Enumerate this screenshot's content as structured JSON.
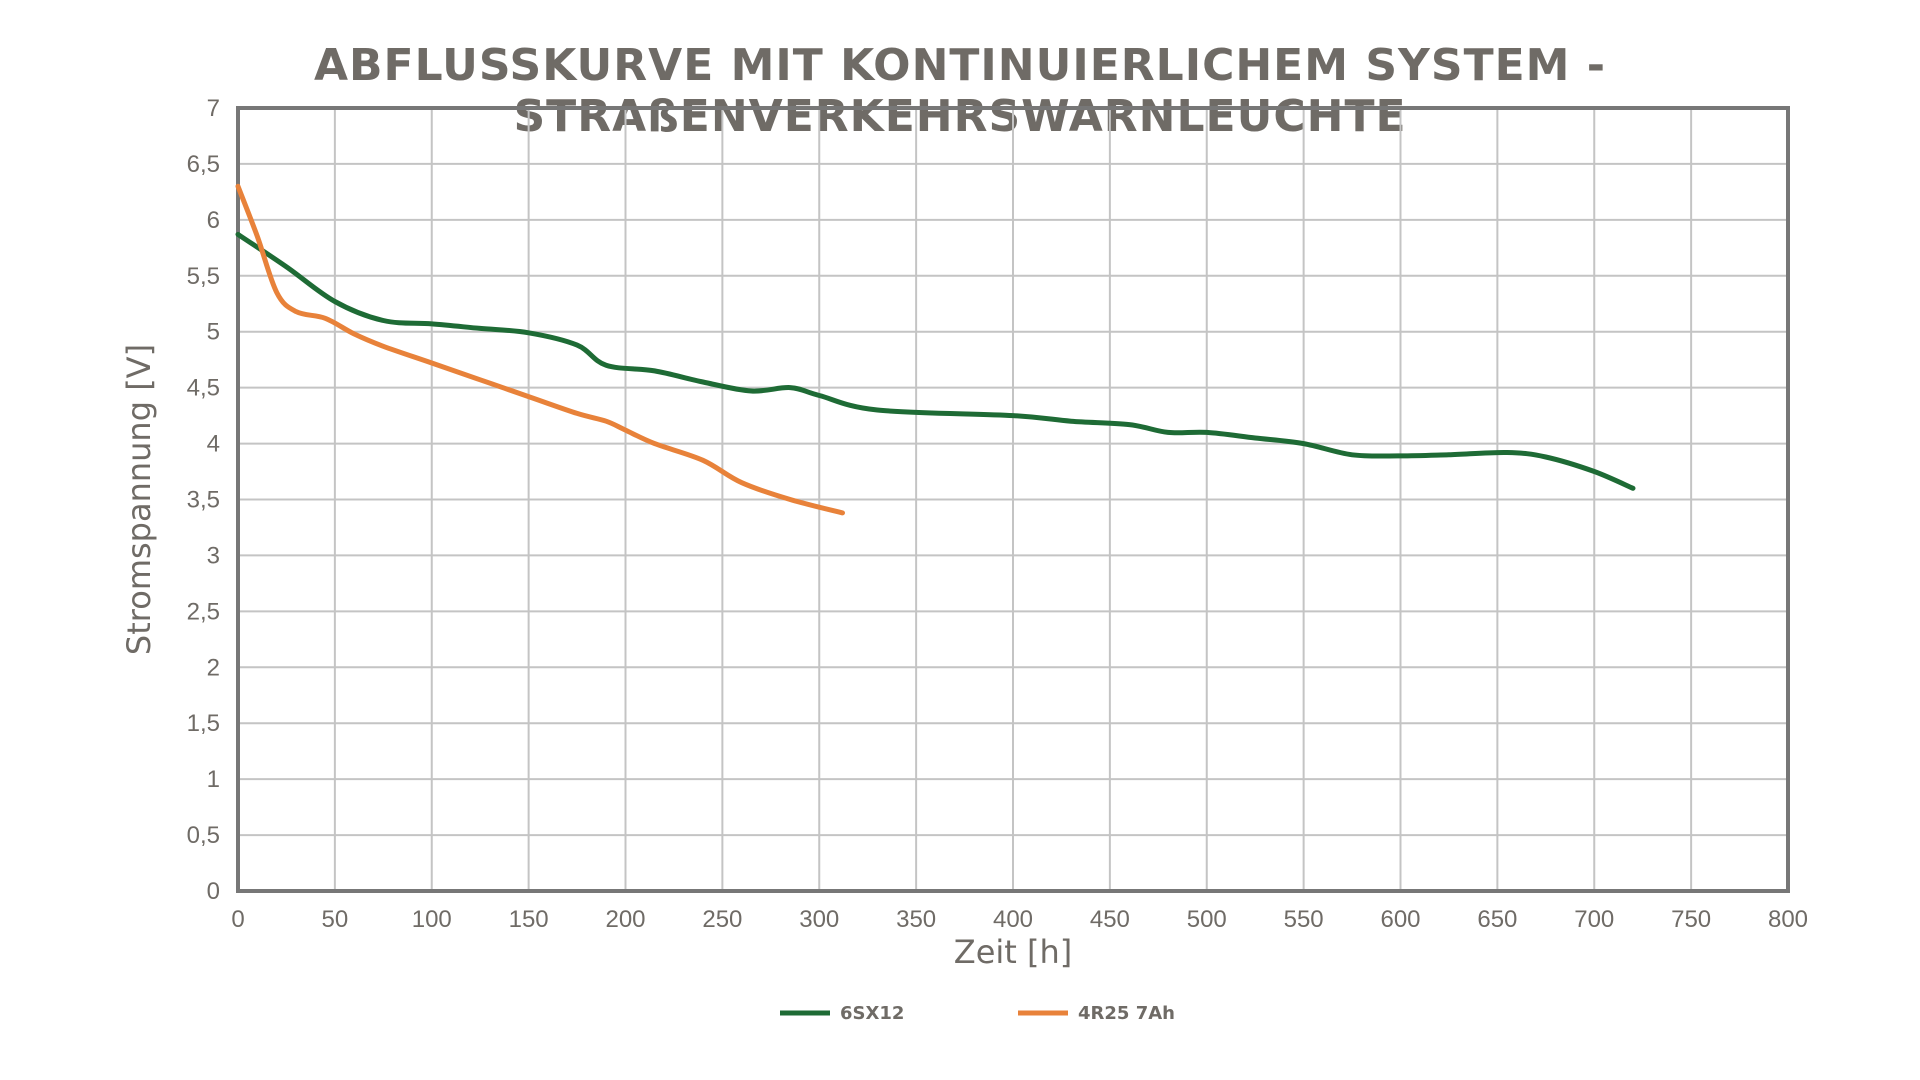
{
  "chart_data": {
    "type": "line",
    "title": "ABFLUSSKURVE MIT KONTINUIERLICHEM SYSTEM - STRAßENVERKEHRSWARNLEUCHTE",
    "xlabel": "Zeit [h]",
    "ylabel": "Stromspannung [V]",
    "xlim": [
      0,
      800
    ],
    "ylim": [
      0,
      7
    ],
    "x_ticks": [
      "0",
      "50",
      "100",
      "150",
      "200",
      "250",
      "300",
      "350",
      "400",
      "450",
      "500",
      "550",
      "600",
      "650",
      "700",
      "750",
      "800"
    ],
    "y_ticks": [
      "0",
      "0,5",
      "1",
      "1,5",
      "2",
      "2,5",
      "3",
      "3,5",
      "4",
      "4,5",
      "5",
      "5,5",
      "6",
      "6,5",
      "7"
    ],
    "grid": true,
    "legend_position": "bottom",
    "series": [
      {
        "name": "6SX12",
        "color": "#1e6b35",
        "x": [
          0,
          25,
          50,
          75,
          100,
          125,
          150,
          175,
          190,
          215,
          240,
          265,
          285,
          300,
          330,
          400,
          430,
          460,
          480,
          500,
          525,
          550,
          575,
          600,
          625,
          655,
          675,
          700,
          720
        ],
        "y": [
          5.87,
          5.58,
          5.27,
          5.1,
          5.07,
          5.03,
          4.99,
          4.88,
          4.7,
          4.65,
          4.55,
          4.47,
          4.5,
          4.43,
          4.3,
          4.25,
          4.2,
          4.17,
          4.1,
          4.1,
          4.05,
          4.0,
          3.9,
          3.89,
          3.9,
          3.92,
          3.88,
          3.75,
          3.6
        ]
      },
      {
        "name": "4R25 7Ah",
        "color": "#e8823a",
        "x": [
          0,
          10,
          20,
          30,
          45,
          60,
          75,
          100,
          125,
          150,
          175,
          190,
          200,
          215,
          240,
          260,
          285,
          312
        ],
        "y": [
          6.3,
          5.85,
          5.35,
          5.18,
          5.12,
          4.98,
          4.87,
          4.72,
          4.57,
          4.42,
          4.27,
          4.2,
          4.12,
          4.0,
          3.85,
          3.65,
          3.5,
          3.38
        ]
      }
    ]
  }
}
